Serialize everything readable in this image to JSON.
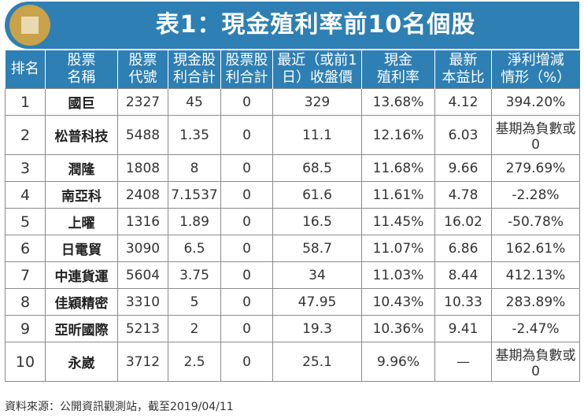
{
  "title": "表1：現金殖利率前10名個股",
  "headers": [
    [
      "排名"
    ],
    [
      "股票",
      "名稱"
    ],
    [
      "股票",
      "代號"
    ],
    [
      "現金股",
      "利合計"
    ],
    [
      "股票股",
      "利合計"
    ],
    [
      "最近（或前1",
      "日）收盤價"
    ],
    [
      "現金",
      "殖利率"
    ],
    [
      "最新",
      "本益比"
    ],
    [
      "淨利增減",
      "情形（%）"
    ]
  ],
  "rows": [
    {
      "rank": "1",
      "name": "國巨",
      "code": "2327",
      "cash": "45",
      "stock": "0",
      "price": "329",
      "yield": "13.68%",
      "pe": "4.12",
      "growth": "394.20%"
    },
    {
      "rank": "2",
      "name": "松普科技",
      "code": "5488",
      "cash": "1.35",
      "stock": "0",
      "price": "11.1",
      "yield": "12.16%",
      "pe": "6.03",
      "growth": "基期為負數或0"
    },
    {
      "rank": "3",
      "name": "潤隆",
      "code": "1808",
      "cash": "8",
      "stock": "0",
      "price": "68.5",
      "yield": "11.68%",
      "pe": "9.66",
      "growth": "279.69%"
    },
    {
      "rank": "4",
      "name": "南亞科",
      "code": "2408",
      "cash": "7.1537",
      "stock": "0",
      "price": "61.6",
      "yield": "11.61%",
      "pe": "4.78",
      "growth": "-2.28%"
    },
    {
      "rank": "5",
      "name": "上曜",
      "code": "1316",
      "cash": "1.89",
      "stock": "0",
      "price": "16.5",
      "yield": "11.45%",
      "pe": "16.02",
      "growth": "-50.78%"
    },
    {
      "rank": "6",
      "name": "日電貿",
      "code": "3090",
      "cash": "6.5",
      "stock": "0",
      "price": "58.7",
      "yield": "11.07%",
      "pe": "6.86",
      "growth": "162.61%"
    },
    {
      "rank": "7",
      "name": "中連貨運",
      "code": "5604",
      "cash": "3.75",
      "stock": "0",
      "price": "34",
      "yield": "11.03%",
      "pe": "8.44",
      "growth": "412.13%"
    },
    {
      "rank": "8",
      "name": "佳穎精密",
      "code": "3310",
      "cash": "5",
      "stock": "0",
      "price": "47.95",
      "yield": "10.43%",
      "pe": "10.33",
      "growth": "283.89%"
    },
    {
      "rank": "9",
      "name": "亞昕國際",
      "code": "5213",
      "cash": "2",
      "stock": "0",
      "price": "19.3",
      "yield": "10.36%",
      "pe": "9.41",
      "growth": "-2.47%"
    },
    {
      "rank": "10",
      "name": "永崴",
      "code": "3712",
      "cash": "2.5",
      "stock": "0",
      "price": "25.1",
      "yield": "9.96%",
      "pe": "—",
      "growth": "基期為負數或0"
    }
  ],
  "source": "資料來源：公開資訊觀測站，截至2019/04/11",
  "colors": {
    "header_bg": "#2e7fb3",
    "badge": "#c9a24a"
  }
}
